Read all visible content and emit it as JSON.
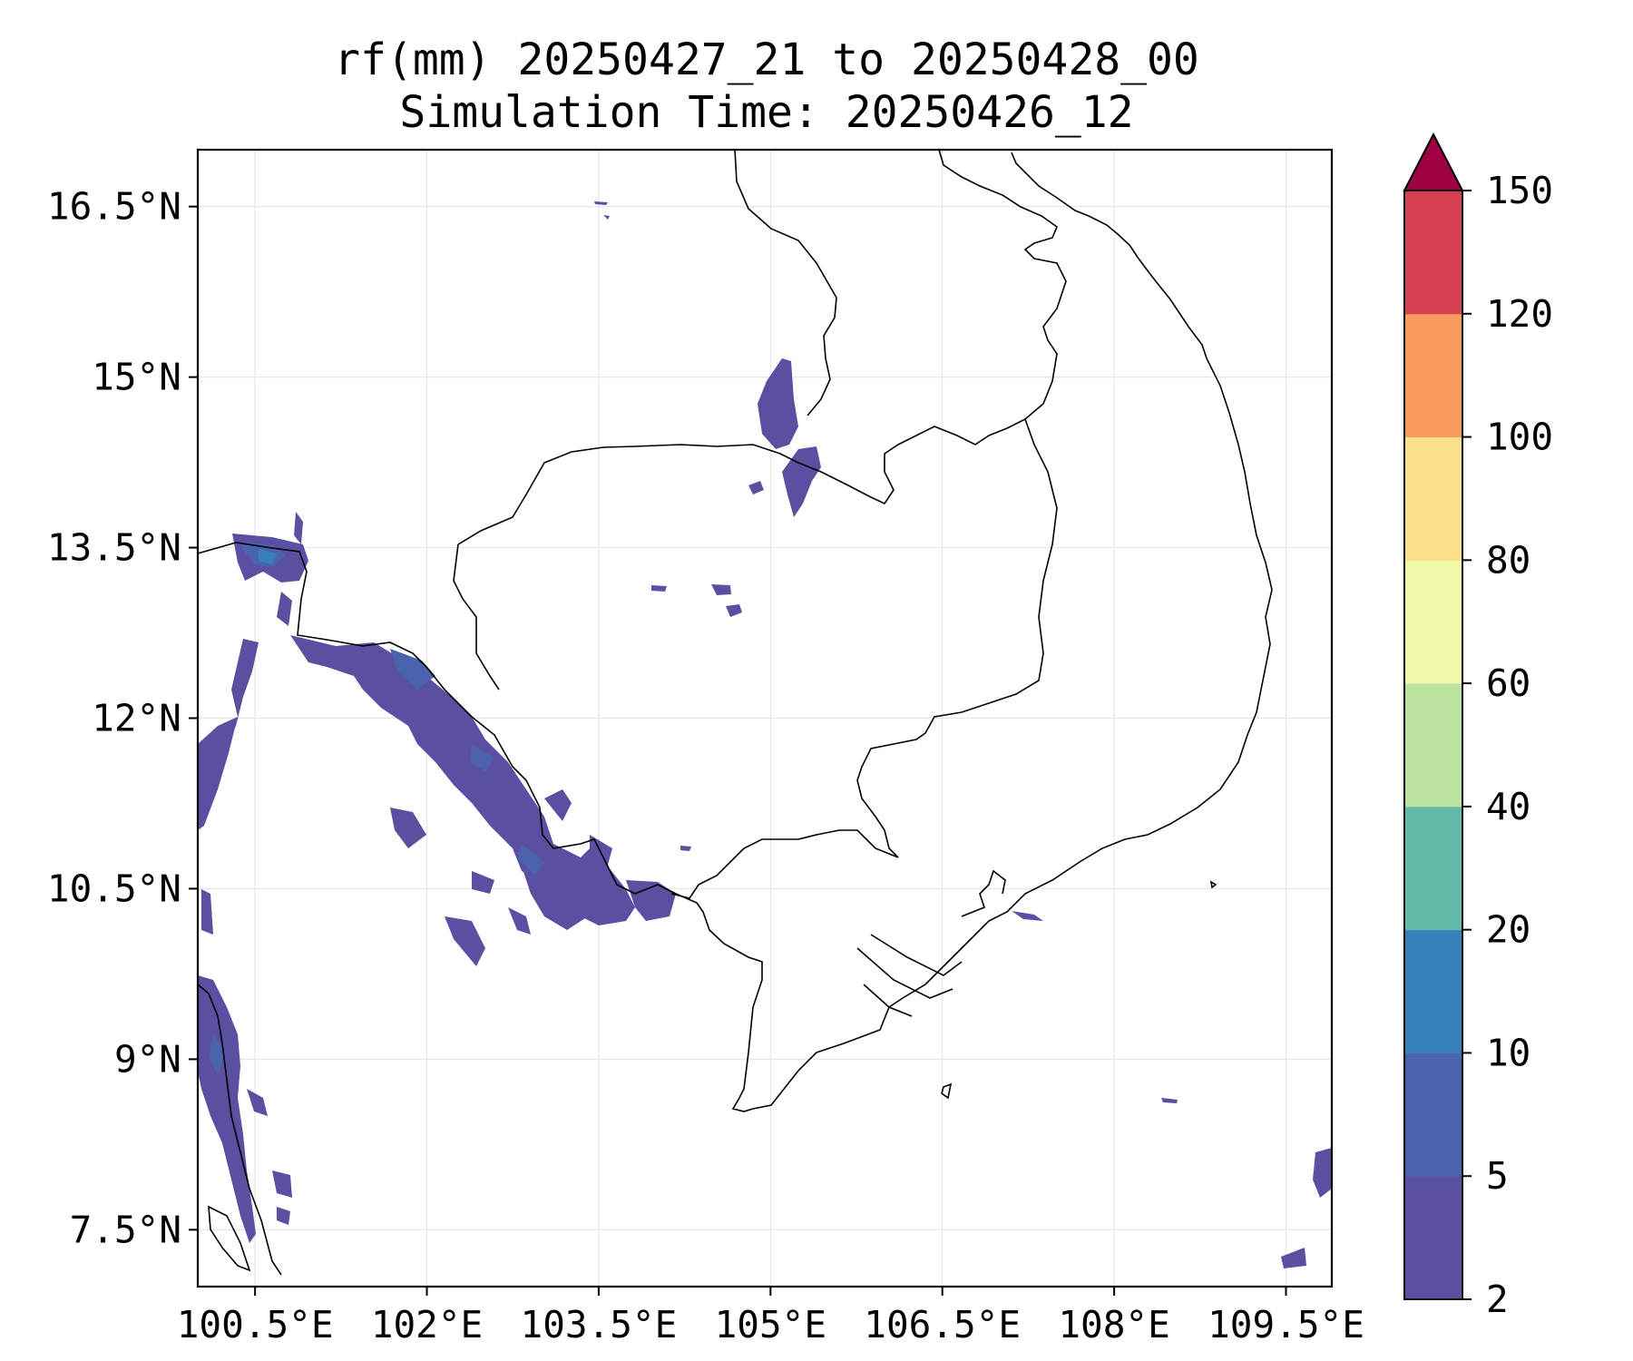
{
  "title": {
    "line1": "rf(mm) 20250427_21 to 20250428_00",
    "line2": "Simulation Time: 20250426_12"
  },
  "map": {
    "lon_range": [
      100.0,
      109.9
    ],
    "lat_range": [
      7.0,
      17.0
    ],
    "x_ticks": [
      100.5,
      102.0,
      103.5,
      105.0,
      106.5,
      108.0,
      109.5
    ],
    "x_tick_labels": [
      "100.5°E",
      "102°E",
      "103.5°E",
      "105°E",
      "106.5°E",
      "108°E",
      "109.5°E"
    ],
    "y_ticks": [
      16.5,
      15.0,
      13.5,
      12.0,
      10.5,
      9.0,
      7.5
    ],
    "y_tick_labels": [
      "16.5°N",
      "15°N",
      "13.5°N",
      "12°N",
      "10.5°N",
      "9°N",
      "7.5°N"
    ],
    "grid": true,
    "field": "rainfall accumulation (mm)",
    "rain_region_level_2_5": [
      {
        "lon": [
          100.3,
          101.2
        ],
        "lat": [
          13.0,
          13.6
        ]
      },
      {
        "lon": [
          101.0,
          103.8
        ],
        "lat": [
          10.2,
          12.5
        ]
      },
      {
        "lon": [
          103.7,
          104.2
        ],
        "lat": [
          10.2,
          10.6
        ]
      },
      {
        "lon": [
          100.0,
          100.4
        ],
        "lat": [
          11.0,
          12.0
        ]
      },
      {
        "lon": [
          100.0,
          100.8
        ],
        "lat": [
          7.4,
          9.6
        ]
      },
      {
        "lon": [
          104.9,
          105.3
        ],
        "lat": [
          14.4,
          15.1
        ]
      },
      {
        "lon": [
          105.0,
          105.4
        ],
        "lat": [
          13.7,
          14.3
        ]
      },
      {
        "lon": [
          109.6,
          109.9
        ],
        "lat": [
          7.9,
          8.3
        ]
      }
    ]
  },
  "colorbar": {
    "levels": [
      2,
      5,
      10,
      20,
      40,
      60,
      80,
      100,
      120,
      150
    ],
    "tick_labels": [
      "2",
      "5",
      "10",
      "20",
      "40",
      "60",
      "80",
      "100",
      "120",
      "150"
    ],
    "colors": [
      "#5a4fa0",
      "#4b62ac",
      "#3880ba",
      "#62bba9",
      "#bde3a0",
      "#f2f9a8",
      "#fbe08a",
      "#f99b5b",
      "#d53f50"
    ],
    "extend_color": "#9e0142"
  }
}
